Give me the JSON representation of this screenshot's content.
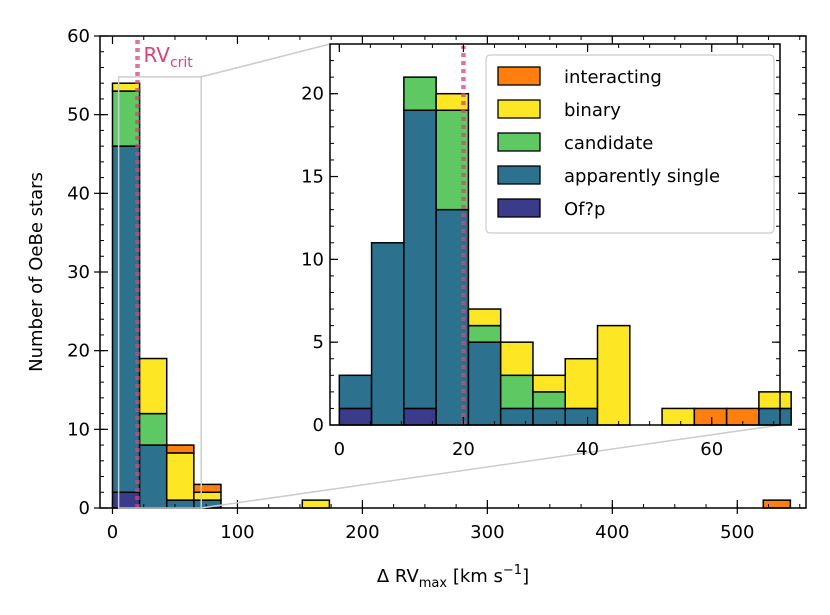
{
  "chart_data": [
    {
      "id": "main",
      "type": "bar",
      "subtype": "stacked-histogram",
      "bin_width": 21.7,
      "xlim": [
        -10,
        555
      ],
      "ylim": [
        0,
        60
      ],
      "xticks": [
        0,
        100,
        200,
        300,
        400,
        500
      ],
      "yticks": [
        0,
        10,
        20,
        30,
        40,
        50,
        60
      ],
      "xlabel": {
        "prefix": "Δ RV",
        "sub": "max",
        "unit_a": " [km s",
        "sup": "−1",
        "unit_b": "]"
      },
      "ylabel": "Number of OeBe stars",
      "vline": {
        "x": 20,
        "label": "RV",
        "label_sub": "crit",
        "color": "#d6457a"
      },
      "bins": [
        {
          "x0": 0,
          "values": [
            0,
            1,
            7,
            44,
            2
          ]
        },
        {
          "x0": 21.7,
          "values": [
            0,
            7,
            4,
            8,
            0
          ]
        },
        {
          "x0": 43.4,
          "values": [
            1,
            6,
            0,
            1,
            0
          ]
        },
        {
          "x0": 65.1,
          "values": [
            1,
            1,
            0,
            1,
            0
          ]
        },
        {
          "x0": 151.9,
          "values": [
            0,
            1,
            0,
            0,
            0
          ]
        },
        {
          "x0": 520.8,
          "values": [
            1,
            0,
            0,
            0,
            0
          ]
        }
      ]
    },
    {
      "id": "inset",
      "type": "bar",
      "subtype": "stacked-histogram",
      "bin_width": 5.2,
      "xlim": [
        -1.5,
        71
      ],
      "ylim": [
        0,
        23
      ],
      "xticks": [
        0,
        20,
        40,
        60
      ],
      "yticks": [
        0,
        5,
        10,
        15,
        20
      ],
      "vline": {
        "x": 20,
        "color": "#d6457a"
      },
      "bins": [
        {
          "x0": 0,
          "values": [
            0,
            0,
            0,
            2,
            1
          ]
        },
        {
          "x0": 5.2,
          "values": [
            0,
            0,
            0,
            11,
            0
          ]
        },
        {
          "x0": 10.4,
          "values": [
            0,
            0,
            2,
            18,
            1
          ]
        },
        {
          "x0": 15.6,
          "values": [
            0,
            1,
            6,
            13,
            0
          ]
        },
        {
          "x0": 20.8,
          "values": [
            0,
            1,
            1,
            5,
            0
          ]
        },
        {
          "x0": 26.0,
          "values": [
            0,
            2,
            2,
            1,
            0
          ]
        },
        {
          "x0": 31.2,
          "values": [
            0,
            1,
            1,
            1,
            0
          ]
        },
        {
          "x0": 36.4,
          "values": [
            0,
            3,
            0,
            1,
            0
          ]
        },
        {
          "x0": 41.6,
          "values": [
            0,
            6,
            0,
            0,
            0
          ]
        },
        {
          "x0": 52.0,
          "values": [
            0,
            1,
            0,
            0,
            0
          ]
        },
        {
          "x0": 57.2,
          "values": [
            1,
            0,
            0,
            0,
            0
          ]
        },
        {
          "x0": 62.4,
          "values": [
            1,
            0,
            0,
            0,
            0
          ]
        },
        {
          "x0": 67.6,
          "values": [
            0,
            1,
            0,
            1,
            0
          ]
        }
      ]
    }
  ],
  "categories": [
    "interacting",
    "binary",
    "candidate",
    "apparently single",
    "Of?p"
  ],
  "colors": {
    "interacting": "#ff7f0e",
    "binary": "#fde724",
    "candidate": "#5ec962",
    "apparently single": "#2c728e",
    "Of?p": "#3b3b8b",
    "zoom": "#cccccc"
  },
  "legend_position": "top-right of inset"
}
